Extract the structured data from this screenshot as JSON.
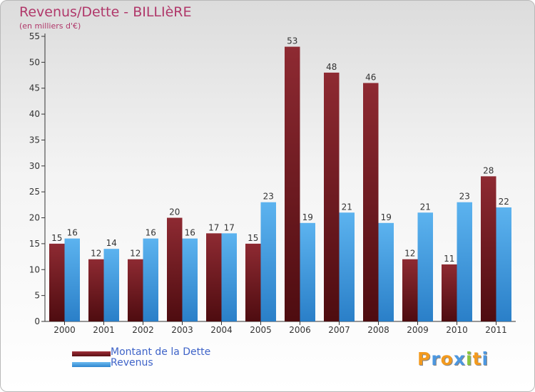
{
  "chart_data": {
    "type": "bar",
    "title": "Revenus/Dette - BILLIèRE",
    "subtitle": "(en milliers d'€)",
    "categories": [
      "2000",
      "2001",
      "2002",
      "2003",
      "2004",
      "2005",
      "2006",
      "2007",
      "2008",
      "2009",
      "2010",
      "2011"
    ],
    "series": [
      {
        "name": "Montant de la Dette",
        "color": "#7a1c22",
        "values": [
          15,
          12,
          12,
          20,
          17,
          15,
          53,
          48,
          46,
          12,
          11,
          28
        ]
      },
      {
        "name": "Revenus",
        "color": "#4aa3e8",
        "values": [
          16,
          14,
          16,
          16,
          17,
          23,
          19,
          21,
          19,
          21,
          23,
          22
        ]
      }
    ],
    "ylim": [
      0,
      55
    ],
    "yticks": [
      0,
      5,
      10,
      15,
      20,
      25,
      30,
      35,
      40,
      45,
      50,
      55
    ],
    "grid": false,
    "legend_position": "bottom-left"
  },
  "logo": {
    "letters": [
      "P",
      "r",
      "o",
      "x",
      "i",
      "t",
      "i"
    ],
    "colors": [
      "#f39a1e",
      "#4c97e0",
      "#f39a1e",
      "#4c97e0",
      "#8cc63f",
      "#f39a1e",
      "#4c97e0"
    ]
  }
}
